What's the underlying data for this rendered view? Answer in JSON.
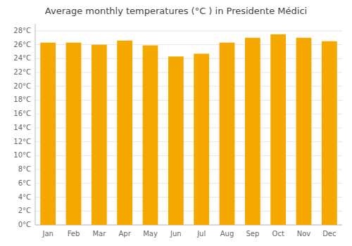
{
  "chart_data": {
    "type": "bar",
    "title": "Average monthly temperatures (°C ) in Presidente Médici",
    "categories": [
      "Jan",
      "Feb",
      "Mar",
      "Apr",
      "May",
      "Jun",
      "Jul",
      "Aug",
      "Sep",
      "Oct",
      "Nov",
      "Dec"
    ],
    "values": [
      26.3,
      26.3,
      26.0,
      26.6,
      25.9,
      24.3,
      24.7,
      26.3,
      27.0,
      27.5,
      27.0,
      26.5
    ],
    "color": "#F5A800",
    "ylim": [
      0,
      29
    ],
    "yticks": [
      {
        "value": 0,
        "label": "0°C"
      },
      {
        "value": 2,
        "label": "2°C"
      },
      {
        "value": 4,
        "label": "4°C"
      },
      {
        "value": 6,
        "label": "6°C"
      },
      {
        "value": 8,
        "label": "8°C"
      },
      {
        "value": 10,
        "label": "10°C"
      },
      {
        "value": 12,
        "label": "12°C"
      },
      {
        "value": 14,
        "label": "14°C"
      },
      {
        "value": 16,
        "label": "16°C"
      },
      {
        "value": 18,
        "label": "18°C"
      },
      {
        "value": 20,
        "label": "20°C"
      },
      {
        "value": 22,
        "label": "22°C"
      },
      {
        "value": 24,
        "label": "24°C"
      },
      {
        "value": 26,
        "label": "26°C"
      },
      {
        "value": 28,
        "label": "28°C"
      }
    ],
    "grid": true
  }
}
